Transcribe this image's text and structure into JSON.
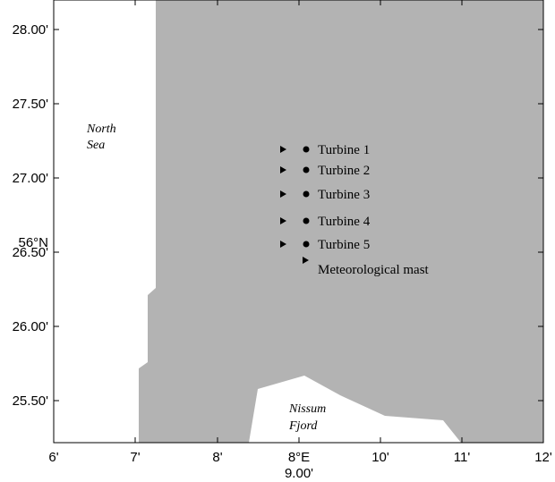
{
  "map": {
    "x_ticks": [
      "6'",
      "7'",
      "8'",
      "8°E",
      "10'",
      "11'",
      "12'"
    ],
    "x_sublabel": "9.00'",
    "y_ticks": [
      "28.00'",
      "27.50'",
      "27.00'",
      "26.50'",
      "26.00'",
      "25.50'"
    ],
    "y_sublabel": "56°N",
    "north_sea": [
      "North",
      "Sea"
    ],
    "nissum_fjord": [
      "Nissum",
      "Fjord"
    ],
    "turbines": [
      "Turbine 1",
      "Turbine 2",
      "Turbine 3",
      "Turbine 4",
      "Turbine 5"
    ],
    "mast": "Meteorological mast"
  }
}
